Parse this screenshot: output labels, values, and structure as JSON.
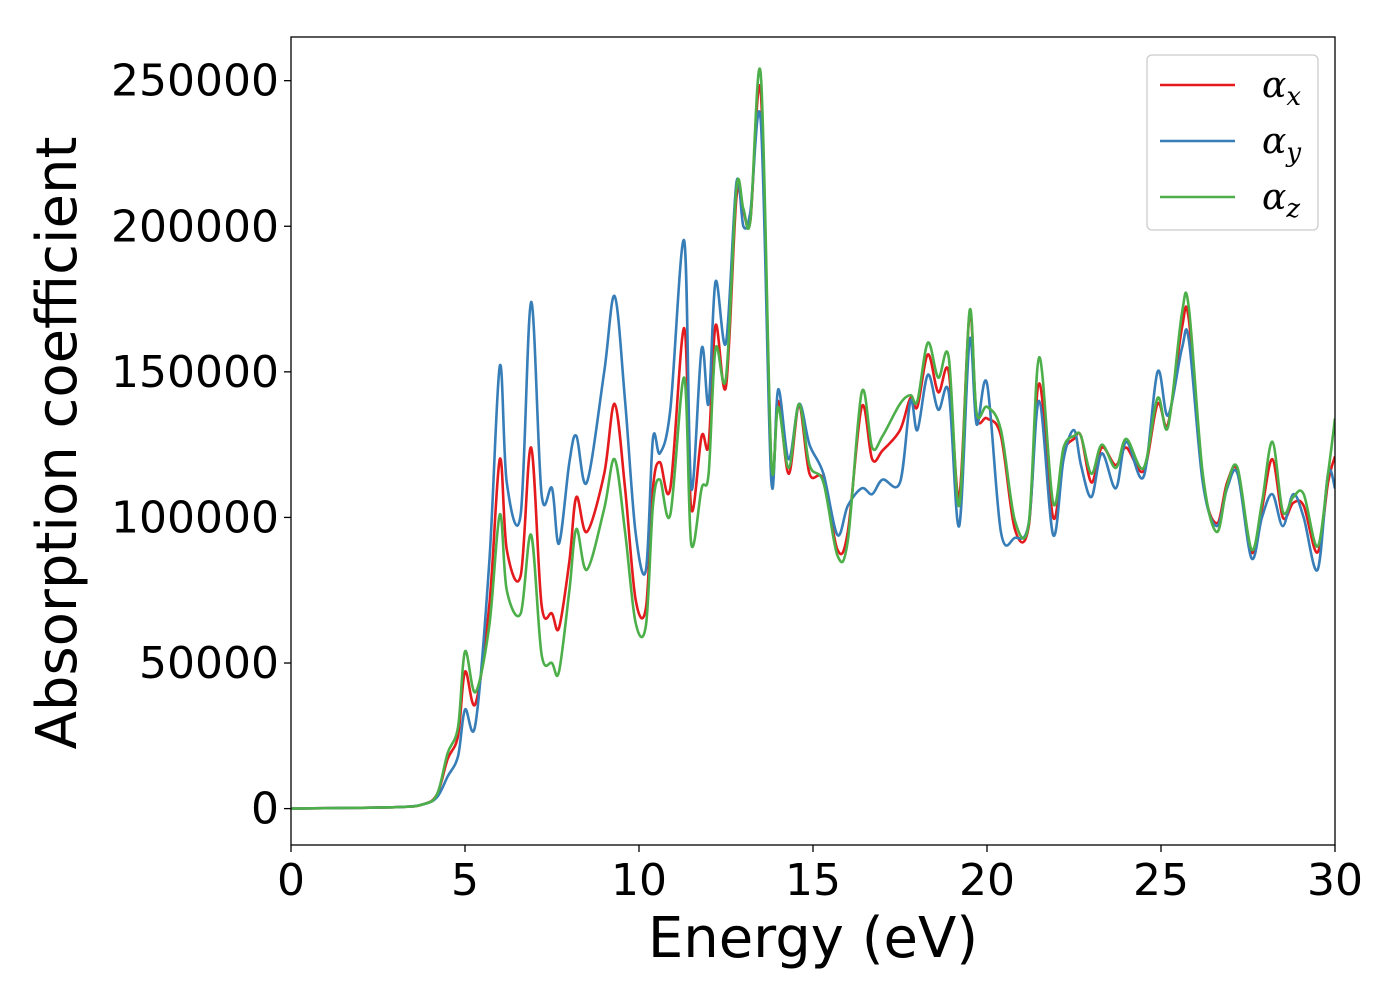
{
  "chart_data": {
    "type": "line",
    "xlabel": "Energy (eV)",
    "ylabel": "Absorption coefficient",
    "xlim": [
      0,
      30
    ],
    "ylim": [
      -12500,
      265000
    ],
    "xticks": [
      0,
      5,
      10,
      15,
      20,
      25,
      30
    ],
    "xtick_labels": [
      "0",
      "5",
      "10",
      "15",
      "20",
      "25",
      "30"
    ],
    "yticks": [
      0,
      50000,
      100000,
      150000,
      200000,
      250000
    ],
    "ytick_labels": [
      "0",
      "50000",
      "100000",
      "150000",
      "200000",
      "250000"
    ],
    "grid": false,
    "legend_position": "top-right",
    "series": [
      {
        "name": "α",
        "subscript": "x",
        "color": "#e41a1c",
        "x": [
          0,
          3,
          3.8,
          4.2,
          4.5,
          4.8,
          5.0,
          5.3,
          5.7,
          6.0,
          6.2,
          6.6,
          6.9,
          7.2,
          7.5,
          7.7,
          8.0,
          8.2,
          8.5,
          9.0,
          9.3,
          9.6,
          9.9,
          10.2,
          10.4,
          10.6,
          10.9,
          11.3,
          11.5,
          11.8,
          12.0,
          12.2,
          12.5,
          12.8,
          13.0,
          13.2,
          13.5,
          13.8,
          14.0,
          14.3,
          14.6,
          14.9,
          15.3,
          15.7,
          16.0,
          16.4,
          16.7,
          17.0,
          17.5,
          17.8,
          18.0,
          18.3,
          18.6,
          18.9,
          19.2,
          19.5,
          19.7,
          20.0,
          20.4,
          20.8,
          21.2,
          21.5,
          21.9,
          22.2,
          22.5,
          22.7,
          23.0,
          23.3,
          23.7,
          24.0,
          24.5,
          24.9,
          25.2,
          25.6,
          25.8,
          26.2,
          26.6,
          26.9,
          27.2,
          27.6,
          27.9,
          28.2,
          28.5,
          28.8,
          29.1,
          29.5,
          29.8,
          30.0
        ],
        "y": [
          0,
          500,
          1500,
          5000,
          17000,
          25000,
          47000,
          36000,
          70000,
          120000,
          89000,
          80000,
          124000,
          70000,
          67000,
          62000,
          85000,
          107000,
          95000,
          115000,
          139000,
          110000,
          72000,
          69000,
          110000,
          119000,
          110000,
          165000,
          103000,
          128000,
          125000,
          166000,
          145000,
          210000,
          205000,
          202000,
          246000,
          118000,
          140000,
          115000,
          138000,
          115000,
          113000,
          89000,
          95000,
          138000,
          120000,
          123000,
          130000,
          141000,
          138000,
          156000,
          143000,
          150000,
          107000,
          170000,
          135000,
          134000,
          128000,
          96000,
          97000,
          146000,
          100000,
          122000,
          127000,
          128000,
          112000,
          124000,
          118000,
          124000,
          116000,
          139000,
          132000,
          165000,
          168000,
          113000,
          98000,
          112000,
          116000,
          88000,
          103000,
          120000,
          100000,
          105000,
          104000,
          88000,
          112000,
          128000
        ],
        "y_extra": [
          121000
        ]
      },
      {
        "name": "α",
        "subscript": "y",
        "color": "#377eb8",
        "x": [
          0,
          3,
          3.8,
          4.2,
          4.5,
          4.8,
          5.0,
          5.3,
          5.7,
          6.0,
          6.2,
          6.6,
          6.9,
          7.2,
          7.5,
          7.7,
          8.0,
          8.2,
          8.5,
          9.0,
          9.3,
          9.6,
          9.9,
          10.2,
          10.4,
          10.6,
          10.9,
          11.3,
          11.5,
          11.8,
          12.0,
          12.2,
          12.5,
          12.8,
          13.0,
          13.2,
          13.5,
          13.8,
          14.0,
          14.3,
          14.6,
          14.9,
          15.3,
          15.7,
          16.0,
          16.4,
          16.7,
          17.0,
          17.5,
          17.8,
          18.0,
          18.3,
          18.6,
          18.9,
          19.2,
          19.5,
          19.7,
          20.0,
          20.4,
          20.8,
          21.2,
          21.5,
          21.9,
          22.2,
          22.5,
          22.7,
          23.0,
          23.3,
          23.7,
          24.0,
          24.5,
          24.9,
          25.2,
          25.6,
          25.8,
          26.2,
          26.6,
          26.9,
          27.2,
          27.6,
          27.9,
          28.2,
          28.5,
          28.8,
          29.1,
          29.5,
          29.8,
          30.0
        ],
        "y": [
          0,
          500,
          1500,
          4000,
          11000,
          18000,
          34000,
          29000,
          85000,
          152000,
          112000,
          101000,
          174000,
          108000,
          110000,
          91000,
          119000,
          128000,
          112000,
          150000,
          176000,
          140000,
          95000,
          82000,
          127000,
          122000,
          137000,
          195000,
          110000,
          158000,
          139000,
          181000,
          160000,
          215000,
          200000,
          205000,
          236000,
          113000,
          144000,
          120000,
          139000,
          125000,
          115000,
          94000,
          104000,
          110000,
          108000,
          113000,
          112000,
          140000,
          130000,
          149000,
          137000,
          143000,
          97000,
          161000,
          132000,
          146000,
          95000,
          93000,
          98000,
          140000,
          94000,
          120000,
          130000,
          118000,
          107000,
          122000,
          110000,
          126000,
          114000,
          150000,
          135000,
          158000,
          161000,
          112000,
          97000,
          110000,
          115000,
          86000,
          100000,
          108000,
          97000,
          108000,
          100000,
          82000,
          115000,
          112000
        ],
        "y_extra": [
          110000
        ]
      },
      {
        "name": "α",
        "subscript": "z",
        "color": "#4daf4a",
        "x": [
          0,
          3,
          3.8,
          4.2,
          4.5,
          4.8,
          5.0,
          5.3,
          5.7,
          6.0,
          6.2,
          6.6,
          6.9,
          7.2,
          7.5,
          7.7,
          8.0,
          8.2,
          8.5,
          9.0,
          9.3,
          9.6,
          9.9,
          10.2,
          10.4,
          10.6,
          10.9,
          11.3,
          11.5,
          11.8,
          12.0,
          12.2,
          12.5,
          12.8,
          13.0,
          13.2,
          13.5,
          13.8,
          14.0,
          14.3,
          14.6,
          14.9,
          15.3,
          15.7,
          16.0,
          16.4,
          16.7,
          17.0,
          17.5,
          17.8,
          18.0,
          18.3,
          18.6,
          18.9,
          19.2,
          19.5,
          19.7,
          20.0,
          20.4,
          20.8,
          21.2,
          21.5,
          21.9,
          22.2,
          22.5,
          22.7,
          23.0,
          23.3,
          23.7,
          24.0,
          24.5,
          24.9,
          25.2,
          25.6,
          25.8,
          26.2,
          26.6,
          26.9,
          27.2,
          27.6,
          27.9,
          28.2,
          28.5,
          28.8,
          29.1,
          29.5,
          29.8,
          30.0
        ],
        "y": [
          0,
          500,
          1500,
          5000,
          19000,
          28000,
          54000,
          40000,
          63000,
          101000,
          75000,
          67000,
          94000,
          53000,
          50000,
          47000,
          75000,
          96000,
          82000,
          103000,
          120000,
          95000,
          64000,
          63000,
          104000,
          113000,
          101000,
          148000,
          91000,
          110000,
          115000,
          158000,
          148000,
          213000,
          206000,
          202000,
          252000,
          120000,
          138000,
          117000,
          139000,
          118000,
          112000,
          87000,
          92000,
          143000,
          124000,
          128000,
          139000,
          142000,
          140000,
          160000,
          148000,
          155000,
          104000,
          171000,
          136000,
          138000,
          130000,
          99000,
          98000,
          155000,
          105000,
          124000,
          128000,
          128000,
          115000,
          125000,
          117000,
          127000,
          117000,
          141000,
          131000,
          170000,
          172000,
          115000,
          95000,
          111000,
          117000,
          89000,
          105000,
          126000,
          102000,
          107000,
          108000,
          90000,
          115000,
          135000
        ],
        "y_extra": [
          134000
        ]
      }
    ]
  }
}
